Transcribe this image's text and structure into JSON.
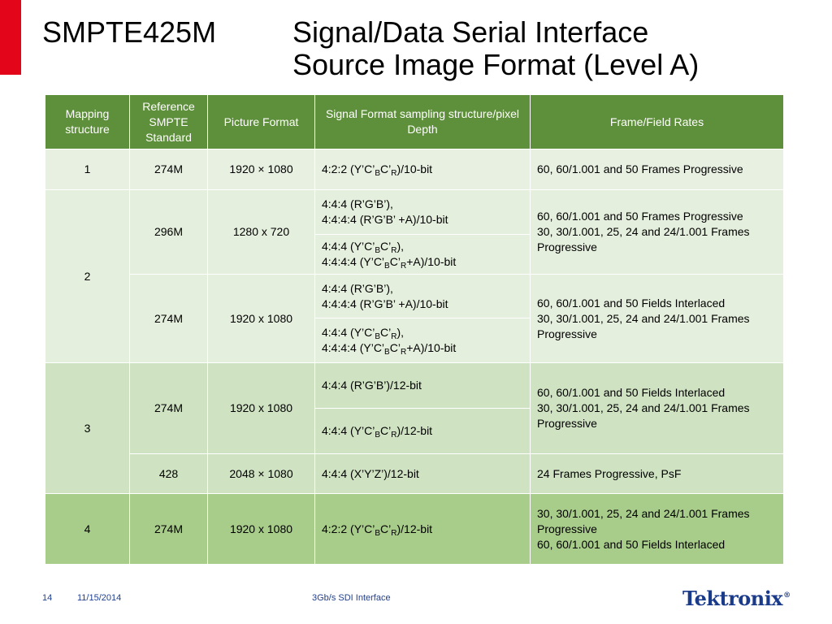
{
  "title": {
    "left": "SMPTE425M",
    "right_line1": "Signal/Data Serial Interface",
    "right_line2": "Source Image Format (Level A)"
  },
  "table": {
    "headers": [
      "Mapping structure",
      "Reference SMPTE Standard",
      "Picture Format",
      "Signal Format sampling structure/pixel Depth",
      "Frame/Field Rates"
    ],
    "map1": {
      "mapping": "1",
      "standard": "274M",
      "picture": "1920 × 1080",
      "fmt_a": "4:2:2 (Y’C’",
      "fmt_b": "B",
      "fmt_c": "C’",
      "fmt_d": "R",
      "fmt_e": ")/10-bit",
      "rates": "60, 60/1.001 and 50 Frames Progressive"
    },
    "map2": {
      "mapping": "2",
      "groupA": {
        "standard": "296M",
        "picture": "1280 x 720",
        "fmt1_line1": "4:4:4 (R’G’B’),",
        "fmt1_line2": "4:4:4:4 (R’G’B’ +A)/10-bit",
        "fmt2_l1_a": "4:4:4 (Y’C’",
        "fmt2_l1_b": "B",
        "fmt2_l1_c": "C’",
        "fmt2_l1_d": "R",
        "fmt2_l1_e": "),",
        "fmt2_l2_a": "4:4:4:4 (Y’C’",
        "fmt2_l2_b": "B",
        "fmt2_l2_c": "C’",
        "fmt2_l2_d": "R",
        "fmt2_l2_e": "+A)/10-bit",
        "rates_line1": "60, 60/1.001 and 50 Frames Progressive",
        "rates_line2": "30, 30/1.001, 25, 24 and 24/1.001 Frames Progressive"
      },
      "groupB": {
        "standard": "274M",
        "picture": "1920 x 1080",
        "fmt1_line1": "4:4:4 (R’G’B’),",
        "fmt1_line2": "4:4:4:4 (R’G’B’ +A)/10-bit",
        "fmt2_l1_a": "4:4:4 (Y’C’",
        "fmt2_l1_b": "B",
        "fmt2_l1_c": "C’",
        "fmt2_l1_d": "R",
        "fmt2_l1_e": "),",
        "fmt2_l2_a": "4:4:4:4 (Y’C’",
        "fmt2_l2_b": "B",
        "fmt2_l2_c": "C’",
        "fmt2_l2_d": "R",
        "fmt2_l2_e": "+A)/10-bit",
        "rates_line1": "60, 60/1.001 and 50 Fields Interlaced",
        "rates_line2": "30, 30/1.001, 25, 24 and 24/1.001 Frames Progressive"
      }
    },
    "map3": {
      "mapping": "3",
      "groupA": {
        "standard": "274M",
        "picture": "1920 x 1080",
        "fmt1": "4:4:4 (R’G’B’)/12-bit",
        "fmt2_a": "4:4:4 (Y’C’",
        "fmt2_b": "B",
        "fmt2_c": "C’",
        "fmt2_d": "R",
        "fmt2_e": ")/12-bit",
        "rates_line1": "60, 60/1.001 and 50 Fields Interlaced",
        "rates_line2": "30, 30/1.001, 25, 24 and 24/1.001 Frames Progressive"
      },
      "groupB": {
        "standard": "428",
        "picture": "2048 × 1080",
        "fmt": "4:4:4 (X’Y’Z’)/12-bit",
        "rates": "24 Frames Progressive, PsF"
      }
    },
    "map4": {
      "mapping": "4",
      "standard": "274M",
      "picture": "1920 x 1080",
      "fmt_a": "4:2:2 (Y’C’",
      "fmt_b": "B",
      "fmt_c": "C’",
      "fmt_d": "R",
      "fmt_e": ")/12-bit",
      "rates_line1": "30, 30/1.001, 25, 24 and 24/1.001 Frames Progressive",
      "rates_line2": "60, 60/1.001 and 50 Fields Interlaced"
    }
  },
  "footer": {
    "page": "14",
    "date": "11/15/2014",
    "center": "3Gb/s SDI Interface",
    "logo": "Tektronix",
    "logo_mark": "®"
  },
  "colors": {
    "accent_red": "#e3061b",
    "header_green": "#5e8f3a",
    "row_light": "#e8f0e1",
    "row_mid": "#cfe2c2",
    "row_dark": "#a8cc8a",
    "footer_blue": "#1f3f8f"
  }
}
